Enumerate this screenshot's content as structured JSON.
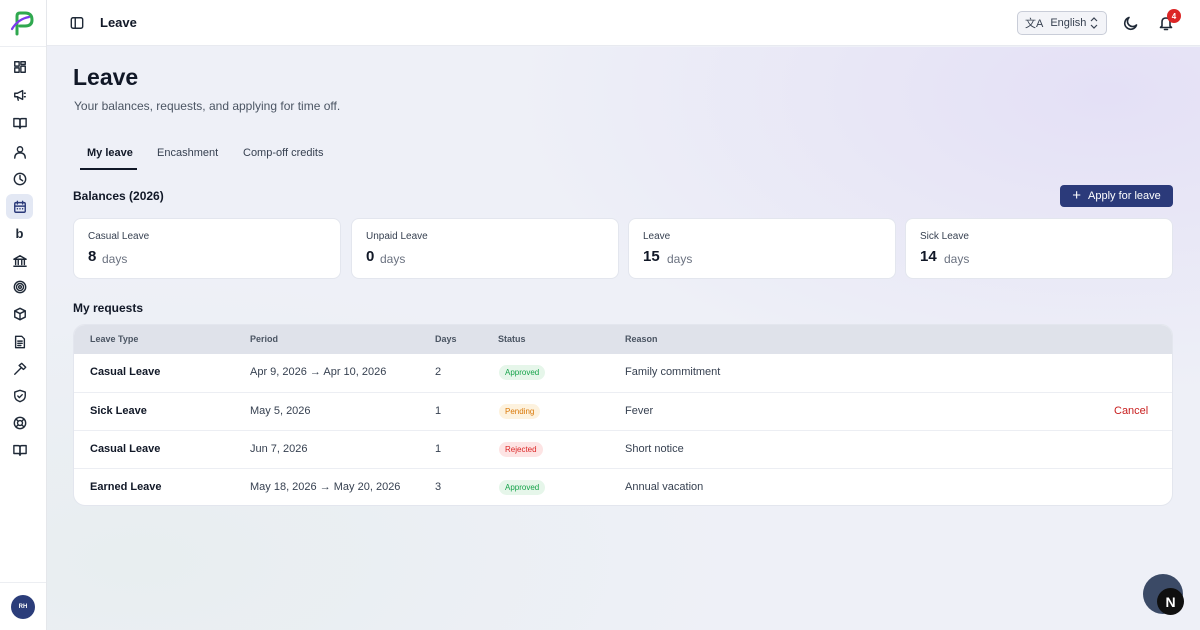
{
  "topbar": {
    "title": "Leave",
    "language": "English",
    "notification_count": "4"
  },
  "sidebar": {
    "items": [
      {
        "icon": "dashboard-icon"
      },
      {
        "icon": "megaphone-icon"
      },
      {
        "icon": "book-open-icon"
      },
      {
        "icon": "user-icon"
      },
      {
        "icon": "clock-icon"
      },
      {
        "icon": "calendar-icon",
        "active": true
      },
      {
        "icon": "b-brand-icon",
        "glyph": "b"
      },
      {
        "icon": "bank-icon"
      },
      {
        "icon": "target-icon"
      },
      {
        "icon": "box-icon"
      },
      {
        "icon": "document-icon"
      },
      {
        "icon": "hammer-icon"
      },
      {
        "icon": "shield-check-icon"
      },
      {
        "icon": "lifebuoy-icon"
      },
      {
        "icon": "open-book-icon"
      }
    ],
    "avatar_initials": "RH"
  },
  "page": {
    "title": "Leave",
    "subtitle": "Your balances, requests, and applying for time off."
  },
  "tabs": [
    {
      "label": "My leave",
      "active": true
    },
    {
      "label": "Encashment",
      "active": false
    },
    {
      "label": "Comp-off credits",
      "active": false
    }
  ],
  "balances": {
    "title": "Balances (2026)",
    "apply_label": "Apply for leave",
    "cards": [
      {
        "name": "Casual Leave",
        "value": "8",
        "unit": "days"
      },
      {
        "name": "Unpaid Leave",
        "value": "0",
        "unit": "days"
      },
      {
        "name": "Leave",
        "value": "15",
        "unit": "days"
      },
      {
        "name": "Sick Leave",
        "value": "14",
        "unit": "days"
      }
    ]
  },
  "requests": {
    "title": "My requests",
    "columns": [
      "Leave Type",
      "Period",
      "Days",
      "Status",
      "Reason"
    ],
    "rows": [
      {
        "type": "Casual Leave",
        "period": "Apr 9, 2026 → Apr 10, 2026",
        "days": "2",
        "status": "Approved",
        "reason": "Family commitment",
        "action": ""
      },
      {
        "type": "Sick Leave",
        "period": "May 5, 2026",
        "days": "1",
        "status": "Pending",
        "reason": "Fever",
        "action": "Cancel"
      },
      {
        "type": "Casual Leave",
        "period": "Jun 7, 2026",
        "days": "1",
        "status": "Rejected",
        "reason": "Short notice",
        "action": ""
      },
      {
        "type": "Earned Leave",
        "period": "May 18, 2026 → May 20, 2026",
        "days": "3",
        "status": "Approved",
        "reason": "Annual vacation",
        "action": ""
      }
    ]
  },
  "fab": {
    "glyph": "N"
  },
  "colors": {
    "primary": "#2b3a7a",
    "approved": "#16a34a",
    "pending": "#d97706",
    "rejected": "#dc2626"
  }
}
